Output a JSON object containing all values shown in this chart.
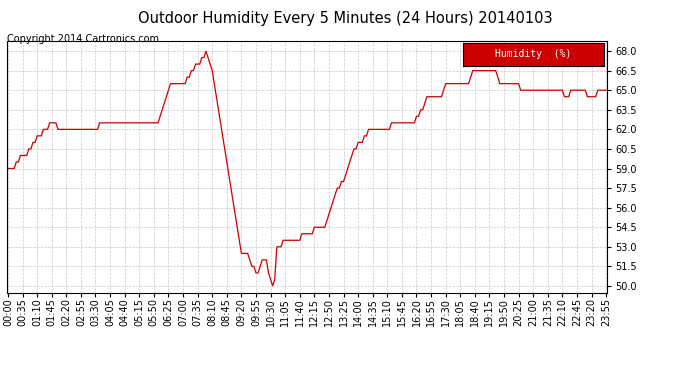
{
  "title": "Outdoor Humidity Every 5 Minutes (24 Hours) 20140103",
  "copyright": "Copyright 2014 Cartronics.com",
  "legend_label": "Humidity  (%)",
  "ylim": [
    49.5,
    68.75
  ],
  "yticks": [
    50.0,
    51.5,
    53.0,
    54.5,
    56.0,
    57.5,
    59.0,
    60.5,
    62.0,
    63.5,
    65.0,
    66.5,
    68.0
  ],
  "line_color": "#cc0000",
  "bg_color": "#ffffff",
  "grid_color": "#bbbbbb",
  "title_fontsize": 10.5,
  "copyright_fontsize": 7,
  "tick_fontsize": 7,
  "humidity_values": [
    59.0,
    59.0,
    59.0,
    59.0,
    59.5,
    59.5,
    60.0,
    60.0,
    60.0,
    60.0,
    60.5,
    60.5,
    61.0,
    61.0,
    61.5,
    61.5,
    61.5,
    62.0,
    62.0,
    62.0,
    62.5,
    62.5,
    62.5,
    62.5,
    62.0,
    62.0,
    62.0,
    62.0,
    62.0,
    62.0,
    62.0,
    62.0,
    62.0,
    62.0,
    62.0,
    62.0,
    62.0,
    62.0,
    62.0,
    62.0,
    62.0,
    62.0,
    62.0,
    62.0,
    62.5,
    62.5,
    62.5,
    62.5,
    62.5,
    62.5,
    62.5,
    62.5,
    62.5,
    62.5,
    62.5,
    62.5,
    62.5,
    62.5,
    62.5,
    62.5,
    62.5,
    62.5,
    62.5,
    62.5,
    62.5,
    62.5,
    62.5,
    62.5,
    62.5,
    62.5,
    62.5,
    62.5,
    62.5,
    63.0,
    63.5,
    64.0,
    64.5,
    65.0,
    65.5,
    65.5,
    65.5,
    65.5,
    65.5,
    65.5,
    65.5,
    65.5,
    66.0,
    66.0,
    66.5,
    66.5,
    67.0,
    67.0,
    67.0,
    67.5,
    67.5,
    68.0,
    67.5,
    67.0,
    66.5,
    65.5,
    64.5,
    63.5,
    62.5,
    61.5,
    60.5,
    59.5,
    58.5,
    57.5,
    56.5,
    55.5,
    54.5,
    53.5,
    52.5,
    52.5,
    52.5,
    52.5,
    52.0,
    51.5,
    51.5,
    51.0,
    51.0,
    51.5,
    52.0,
    52.0,
    52.0,
    51.0,
    50.5,
    50.0,
    50.5,
    53.0,
    53.0,
    53.0,
    53.5,
    53.5,
    53.5,
    53.5,
    53.5,
    53.5,
    53.5,
    53.5,
    53.5,
    54.0,
    54.0,
    54.0,
    54.0,
    54.0,
    54.0,
    54.5,
    54.5,
    54.5,
    54.5,
    54.5,
    54.5,
    55.0,
    55.5,
    56.0,
    56.5,
    57.0,
    57.5,
    57.5,
    58.0,
    58.0,
    58.5,
    59.0,
    59.5,
    60.0,
    60.5,
    60.5,
    61.0,
    61.0,
    61.0,
    61.5,
    61.5,
    62.0,
    62.0,
    62.0,
    62.0,
    62.0,
    62.0,
    62.0,
    62.0,
    62.0,
    62.0,
    62.0,
    62.5,
    62.5,
    62.5,
    62.5,
    62.5,
    62.5,
    62.5,
    62.5,
    62.5,
    62.5,
    62.5,
    62.5,
    63.0,
    63.0,
    63.5,
    63.5,
    64.0,
    64.5,
    64.5,
    64.5,
    64.5,
    64.5,
    64.5,
    64.5,
    64.5,
    65.0,
    65.5,
    65.5,
    65.5,
    65.5,
    65.5,
    65.5,
    65.5,
    65.5,
    65.5,
    65.5,
    65.5,
    65.5,
    66.0,
    66.5,
    66.5,
    66.5,
    66.5,
    66.5,
    66.5,
    66.5,
    66.5,
    66.5,
    66.5,
    66.5,
    66.5,
    66.0,
    65.5,
    65.5,
    65.5,
    65.5,
    65.5,
    65.5,
    65.5,
    65.5,
    65.5,
    65.5,
    65.0,
    65.0,
    65.0,
    65.0,
    65.0,
    65.0,
    65.0,
    65.0,
    65.0,
    65.0,
    65.0,
    65.0,
    65.0,
    65.0,
    65.0,
    65.0,
    65.0,
    65.0,
    65.0,
    65.0,
    65.0,
    64.5,
    64.5,
    64.5,
    65.0,
    65.0,
    65.0,
    65.0,
    65.0,
    65.0,
    65.0,
    65.0,
    64.5,
    64.5,
    64.5,
    64.5,
    64.5,
    65.0,
    65.0,
    65.0,
    65.0,
    65.0
  ],
  "xtick_every": 7,
  "legend_color": "#cc0000",
  "legend_text_color": "#ffffff"
}
